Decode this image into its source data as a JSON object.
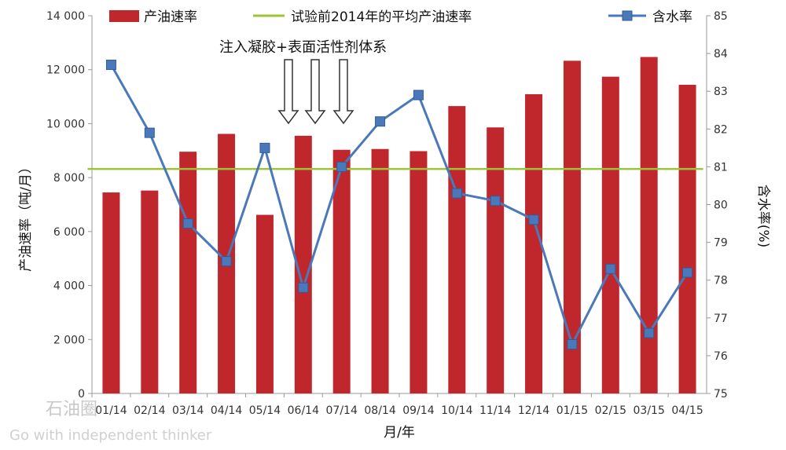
{
  "chart_data": {
    "type": "bar+line",
    "categories": [
      "01/14",
      "02/14",
      "03/14",
      "04/14",
      "05/14",
      "06/14",
      "07/14",
      "08/14",
      "09/14",
      "10/14",
      "11/14",
      "12/14",
      "01/15",
      "02/15",
      "03/15",
      "04/15"
    ],
    "series": [
      {
        "name": "产油速率",
        "type": "bar",
        "axis": "left",
        "color": "#c0272d",
        "values": [
          7450,
          7520,
          8960,
          9620,
          6620,
          9550,
          9030,
          9060,
          8980,
          10650,
          9860,
          11090,
          12330,
          11740,
          12470,
          11440
        ]
      },
      {
        "name": "试验前2014年的平均产油速率",
        "type": "hline",
        "axis": "left",
        "color": "#9bc43b",
        "value": 8320
      },
      {
        "name": "含水率",
        "type": "line",
        "axis": "right",
        "color": "#4a78b8",
        "values": [
          83.7,
          81.9,
          79.5,
          78.5,
          81.5,
          77.8,
          81.0,
          82.2,
          82.9,
          80.3,
          80.1,
          79.6,
          76.3,
          78.3,
          76.6,
          78.2
        ]
      }
    ],
    "xlabel": "月/年",
    "ylabel": "产油速率（吨/月）",
    "ylabel2": "含水率(%)",
    "ylim": [
      0,
      14000
    ],
    "y2lim": [
      75,
      85
    ],
    "yticks": [
      "0",
      "2 000",
      "4 000",
      "6 000",
      "8 000",
      "10 000",
      "12 000",
      "14 000"
    ],
    "y2ticks": [
      "75",
      "76",
      "77",
      "78",
      "79",
      "80",
      "81",
      "82",
      "83",
      "84",
      "85"
    ],
    "annotation": {
      "text": "注入凝胶+表面活性剂体系",
      "arrow_categories": [
        "06/14",
        "07/14",
        "08/14"
      ]
    },
    "legend_position": "top",
    "grid": false
  },
  "watermark": {
    "cn": "石油圈",
    "en": "Go with independent thinker"
  }
}
